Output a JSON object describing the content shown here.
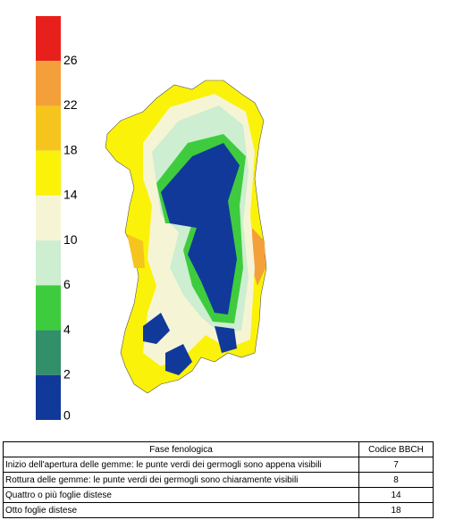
{
  "legend": {
    "colors": [
      "#e8201c",
      "#f4a03a",
      "#f5c51e",
      "#fbf20a",
      "#f5f5d6",
      "#cdeed0",
      "#3ecc3e",
      "#338e6a",
      "#11399a"
    ],
    "ticks": [
      26,
      22,
      18,
      14,
      10,
      6,
      4,
      2,
      0
    ]
  },
  "table": {
    "header": [
      "Fase fenologica",
      "Codice BBCH"
    ],
    "rows": [
      [
        "Inizio dell'apertura delle gemme: le punte verdi dei germogli sono appena visibili",
        7
      ],
      [
        "Rottura delle gemme: le punte verdi dei germogli sono chiaramente visibili",
        8
      ],
      [
        "Quattro o più foglie distese",
        14
      ],
      [
        "Otto foglie distese",
        18
      ]
    ]
  }
}
